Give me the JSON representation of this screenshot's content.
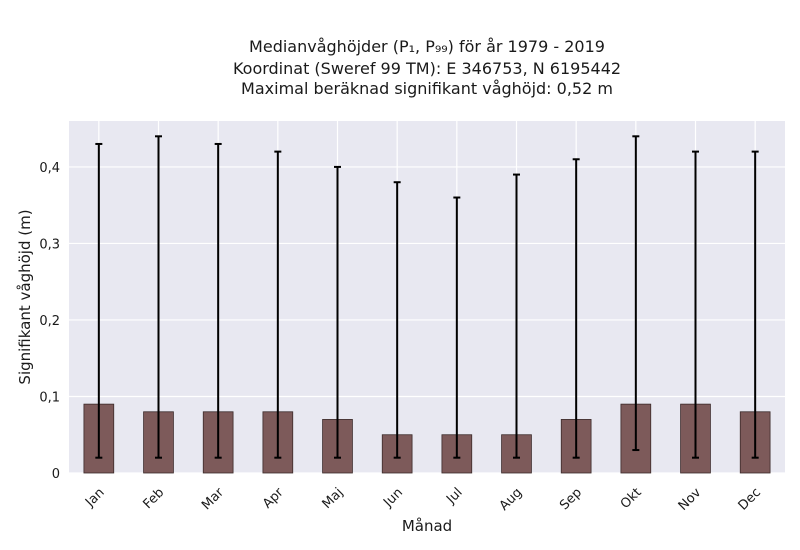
{
  "chart_data": {
    "type": "bar",
    "title_lines": [
      "Medianvåghöjder (P₁, P₉₉) för år 1979 - 2019",
      "Koordinat (Sweref 99 TM): E 346753, N 6195442",
      "Maximal beräknad signifikant våghöjd: 0,52 m"
    ],
    "xlabel": "Månad",
    "ylabel": "Signifikant våghöjd (m)",
    "categories": [
      "Jan",
      "Feb",
      "Mar",
      "Apr",
      "Maj",
      "Jun",
      "Jul",
      "Aug",
      "Sep",
      "Okt",
      "Nov",
      "Dec"
    ],
    "values": [
      0.09,
      0.08,
      0.08,
      0.08,
      0.07,
      0.05,
      0.05,
      0.05,
      0.07,
      0.09,
      0.09,
      0.08
    ],
    "p1": [
      0.02,
      0.02,
      0.02,
      0.02,
      0.02,
      0.02,
      0.02,
      0.02,
      0.02,
      0.03,
      0.02,
      0.02
    ],
    "p99": [
      0.43,
      0.44,
      0.43,
      0.42,
      0.4,
      0.38,
      0.36,
      0.39,
      0.41,
      0.44,
      0.42,
      0.42
    ],
    "ylim": [
      0,
      0.46
    ],
    "yticks": [
      0,
      0.1,
      0.2,
      0.3,
      0.4
    ],
    "ytick_labels": [
      "0",
      "0,1",
      "0,2",
      "0,3",
      "0,4"
    ],
    "grid": true,
    "colors": {
      "bar": "#7d5a5a",
      "bar_edge": "#3b2a2a",
      "error": "#000000",
      "plot_bg": "#e8e8f1",
      "grid": "#ffffff"
    }
  }
}
